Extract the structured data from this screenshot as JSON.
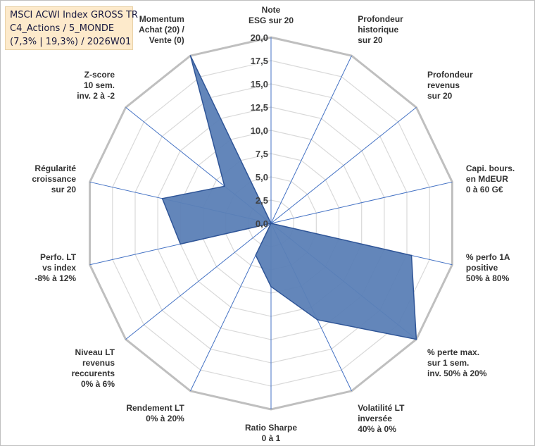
{
  "title_box": {
    "line1": "MSCI ACWI Index GROSS TR",
    "line2": "C4_Actions / 5_MONDE",
    "line3": "(7,3% | 19,3%) / 2026W01"
  },
  "colors": {
    "fill": "#5b80b6",
    "stroke": "#2f5597",
    "grid": "#d9d9d9",
    "outer_ring": "#bfbfbf",
    "spoke": "#4472c4",
    "title_bg": "#fdeacb"
  },
  "chart_data": {
    "type": "radar",
    "title": "",
    "rmax": 20,
    "tick_labels": [
      "0,0",
      "2,5",
      "5,0",
      "7,5",
      "10,0",
      "12,5",
      "15,0",
      "17,5",
      "20,0"
    ],
    "axes": [
      {
        "name": "ESG",
        "lines": [
          "Note",
          "ESG sur 20"
        ],
        "value": 0
      },
      {
        "name": "Profondeur historique",
        "lines": [
          "Profondeur",
          "historique",
          "sur 20"
        ],
        "value": 0
      },
      {
        "name": "Profondeur revenus",
        "lines": [
          "Profondeur",
          "revenus",
          "sur 20"
        ],
        "value": 0
      },
      {
        "name": "Capi. bours.",
        "lines": [
          "Capi. bours.",
          "en MdEUR",
          "0 à 60 G€"
        ],
        "value": 0
      },
      {
        "name": "% perfo 1A positive",
        "lines": [
          "% perfo 1A",
          "positive",
          "50% à 80%"
        ],
        "value": 15.5
      },
      {
        "name": "% perte max.",
        "lines": [
          "% perte max.",
          "sur 1 sem.",
          "inv. 50% à 20%"
        ],
        "value": 20
      },
      {
        "name": "Volatilité LT inversée",
        "lines": [
          "Volatilité LT",
          "inversée",
          "40% à 0%"
        ],
        "value": 11.5
      },
      {
        "name": "Ratio Sharpe",
        "lines": [
          "Ratio Sharpe",
          "0 à 1"
        ],
        "value": 6.8
      },
      {
        "name": "Rendement LT",
        "lines": [
          "Rendement LT",
          "0% à 20%"
        ],
        "value": 3.8
      },
      {
        "name": "Niveau LT revenus reccurents",
        "lines": [
          "Niveau LT",
          "revenus",
          "reccurents",
          "0% à 6%"
        ],
        "value": 0
      },
      {
        "name": "Perfo. LT vs index",
        "lines": [
          "Perfo. LT",
          "vs index",
          "-8% à 12%"
        ],
        "value": 10
      },
      {
        "name": "Régularité croissance",
        "lines": [
          "Régularité",
          "croissance",
          "sur 20"
        ],
        "value": 12
      },
      {
        "name": "Z-score",
        "lines": [
          "Z-score",
          "10 sem.",
          "inv. 2 à -2"
        ],
        "value": 6.4
      },
      {
        "name": "Momentum",
        "lines": [
          "Momentum",
          "Achat (20) /",
          "Vente (0)"
        ],
        "value": 20
      }
    ]
  }
}
